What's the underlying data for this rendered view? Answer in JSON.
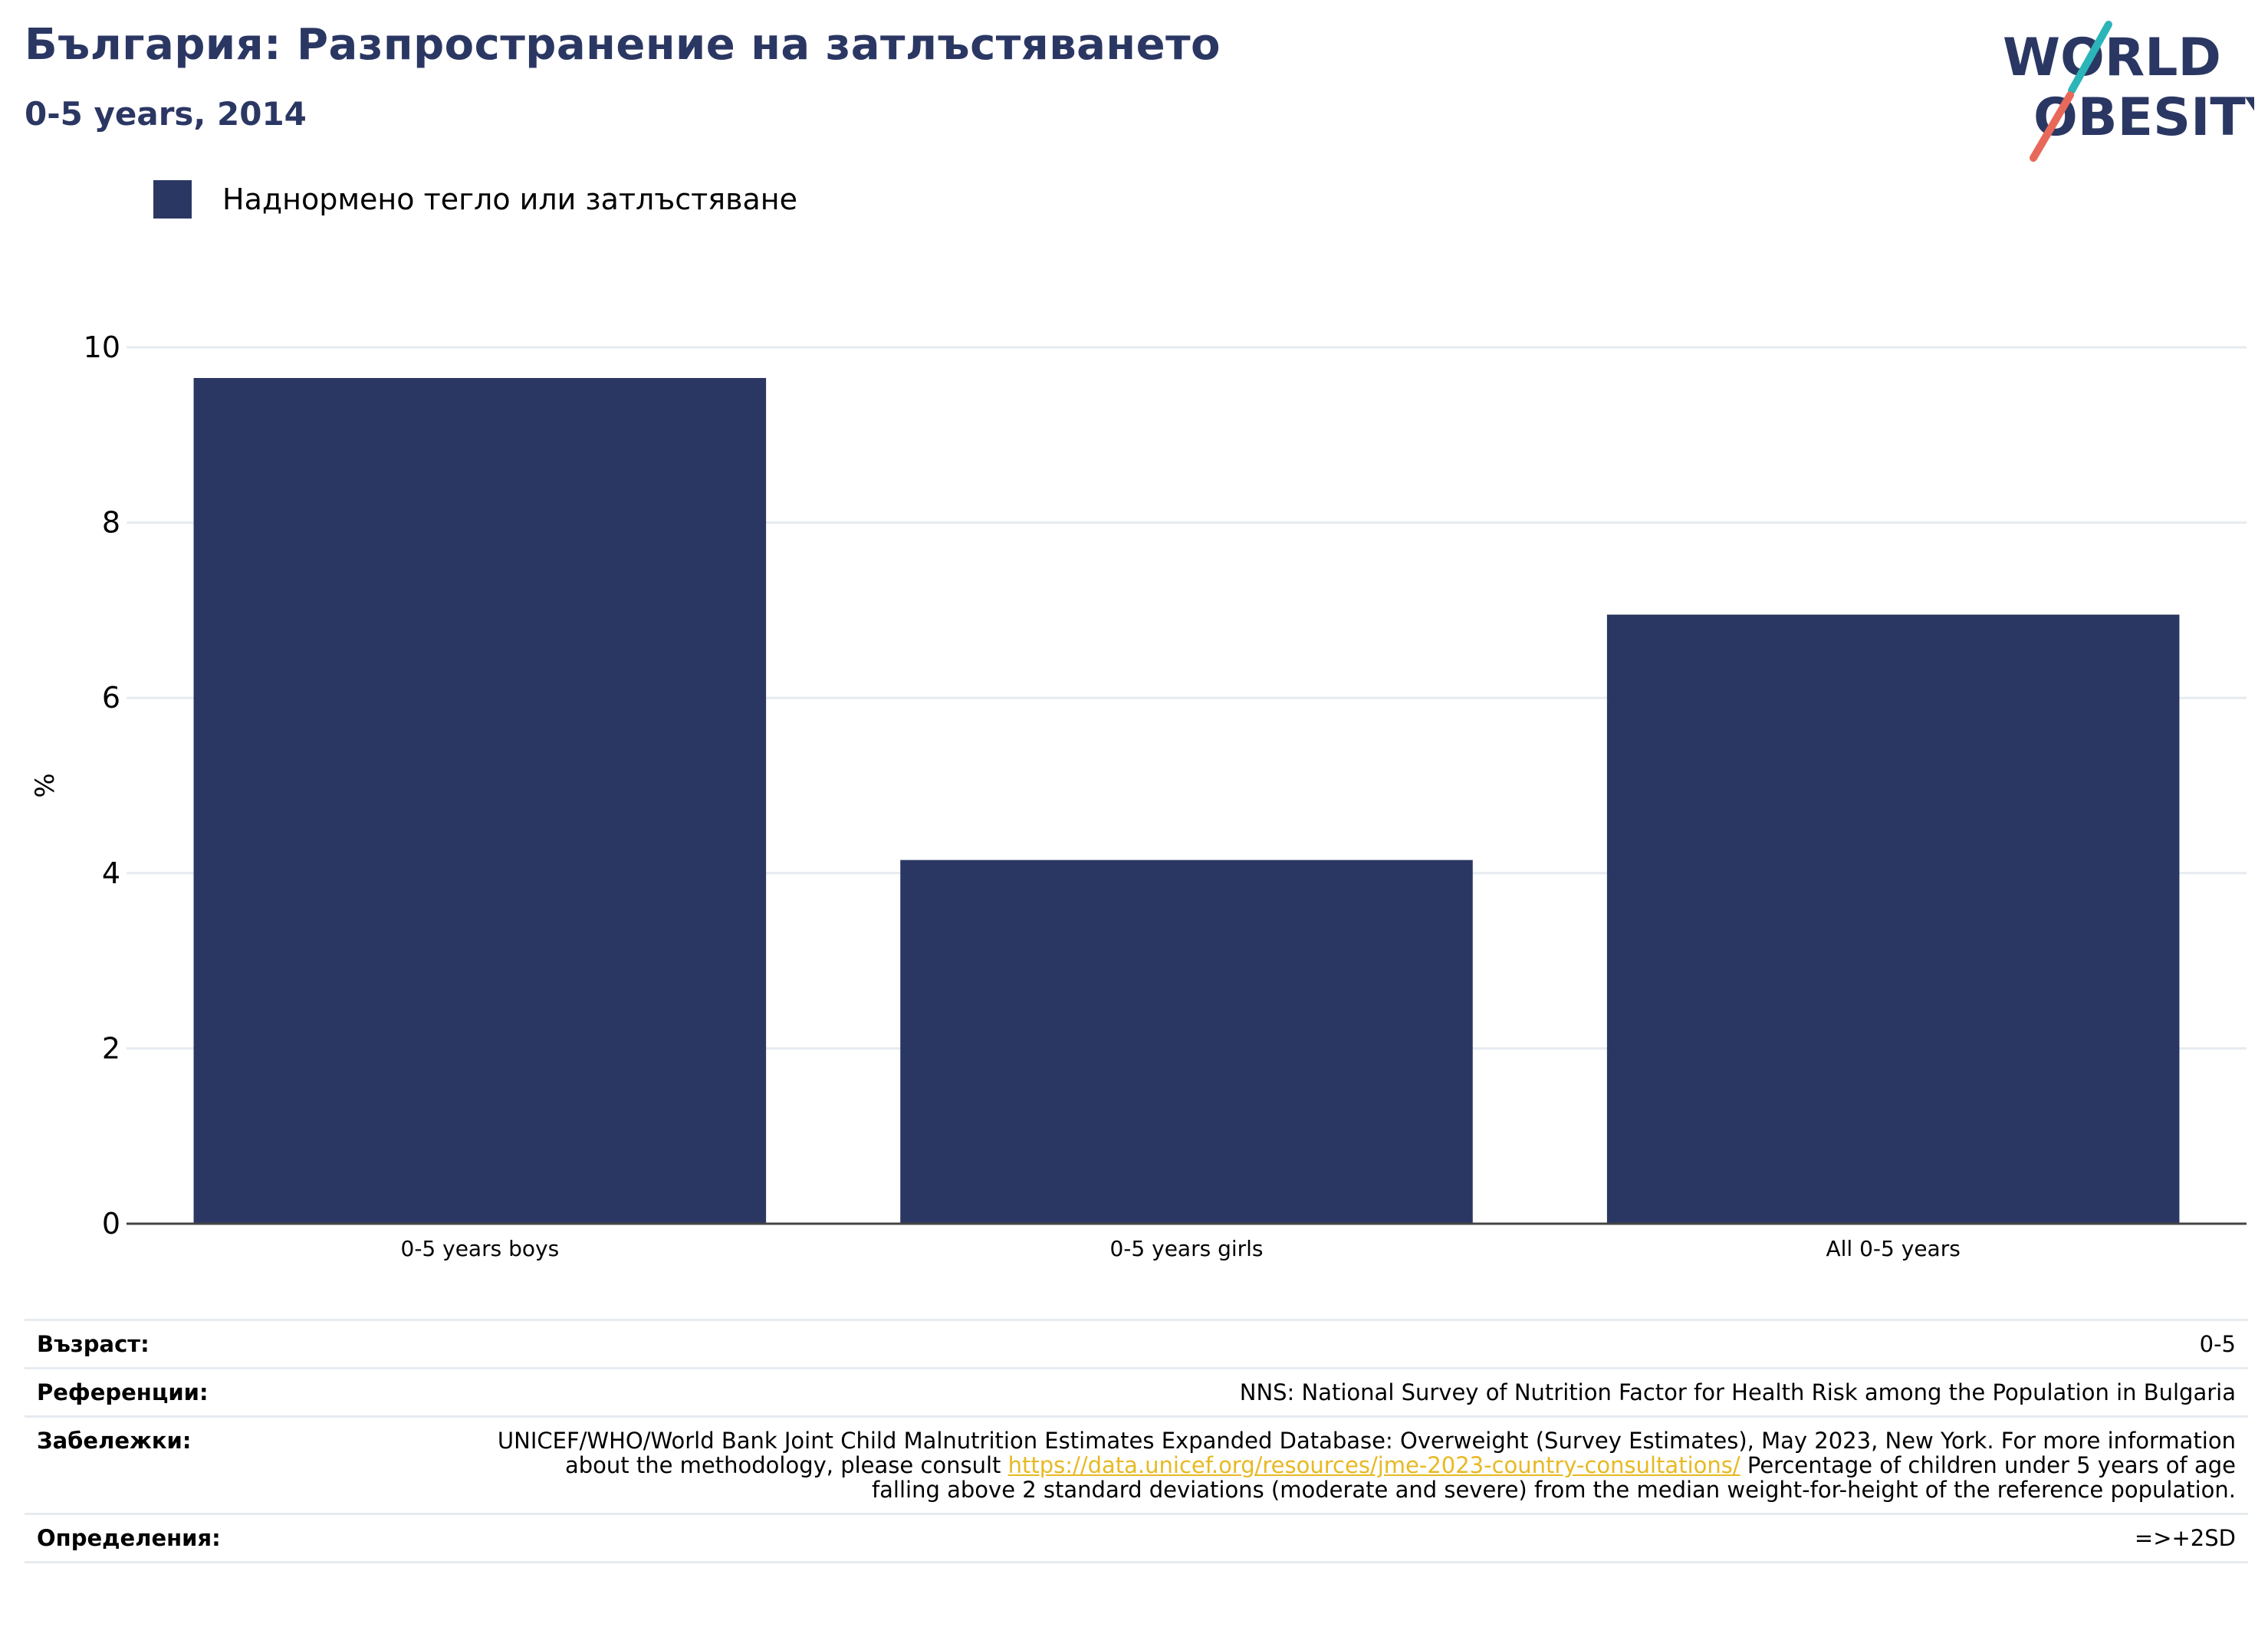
{
  "header": {
    "title": "България: Разпространение на затлъстяването",
    "subtitle": "0-5 years, 2014"
  },
  "logo": {
    "line1": "WORLD",
    "line2": "OBESITY"
  },
  "legend": {
    "label": "Наднормено тегло или затлъстяване",
    "color": "#2b3763"
  },
  "chart_data": {
    "type": "bar",
    "categories": [
      "0-5 years boys",
      "0-5 years girls",
      "All 0-5 years"
    ],
    "series": [
      {
        "name": "Наднормено тегло или затлъстяване",
        "values": [
          9.65,
          4.15,
          6.95
        ]
      }
    ],
    "ylabel": "%",
    "ylim": [
      0,
      10
    ],
    "yticks": [
      0,
      2,
      4,
      6,
      8,
      10
    ],
    "grid": true,
    "bar_color": "#2b3763"
  },
  "meta": {
    "age_key": "Възраст:",
    "age_val": "0-5",
    "refs_key": "Референции:",
    "refs_val": "NNS: National Survey of Nutrition Factor for Health Risk among the Population in Bulgaria",
    "notes_key": "Забележки:",
    "notes_pre": "UNICEF/WHO/World Bank Joint Child Malnutrition Estimates Expanded Database: Overweight (Survey Estimates), May 2023, New York. For more information about the methodology, please consult ",
    "notes_link": "https://data.unicef.org/resources/jme-2023-country-consultations/",
    "notes_post": " Percentage of children under 5 years of age falling above 2 standard deviations (moderate and severe) from the median weight-for-height of the reference population.",
    "defs_key": "Определения:",
    "defs_val": "=>+2SD"
  }
}
